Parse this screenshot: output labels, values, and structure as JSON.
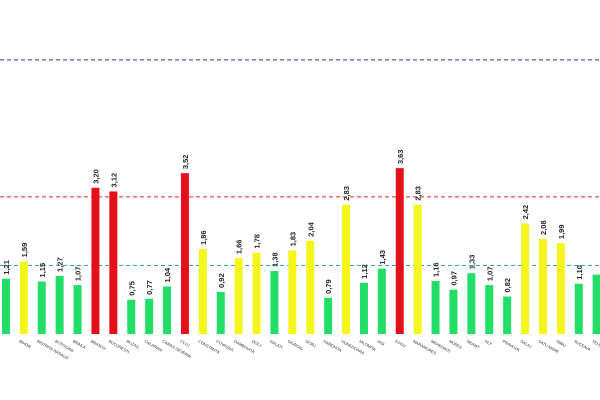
{
  "chart_data": {
    "type": "bar",
    "title": "",
    "xlabel": "",
    "ylabel": "",
    "ylim": [
      0,
      6.5
    ],
    "grid": false,
    "legend": "none",
    "categories": [
      "",
      "BIHOR",
      "BISTRITA-NASAUD",
      "BOTOSANI",
      "BRAILA",
      "BRASOV",
      "BUCURESTI",
      "BUZAU",
      "CALARASI",
      "CARAS-SEVERIN",
      "CLUJ",
      "CONSTANTA",
      "COVASNA",
      "DAMBOVITA",
      "DOLJ",
      "GALATI",
      "GIURGIU",
      "GORJ",
      "HARGHITA",
      "HUNEDOARA",
      "IALOMITA",
      "IASI",
      "ILFOV",
      "MARAMURES",
      "MEHEDINTI",
      "MURES",
      "NEAMT",
      "OLT",
      "PRAHOVA",
      "SALAJ",
      "SATU MARE",
      "SIBIU",
      "SUCEAVA",
      "TELEORMAN"
    ],
    "values": [
      1.21,
      1.59,
      1.15,
      1.27,
      1.07,
      3.2,
      3.12,
      0.75,
      0.77,
      1.04,
      3.52,
      1.86,
      0.92,
      1.66,
      1.78,
      1.38,
      1.83,
      2.04,
      0.79,
      2.83,
      1.12,
      1.43,
      3.63,
      2.83,
      1.16,
      0.97,
      1.33,
      1.07,
      0.82,
      2.42,
      2.08,
      1.99,
      1.1,
      1.3
    ],
    "value_labels": [
      "1,21",
      "1,59",
      "1,15",
      "1,27",
      "1,07",
      "3,20",
      "3,12",
      "0,75",
      "0,77",
      "1,04",
      "3,52",
      "1,86",
      "0,92",
      "1,66",
      "1,78",
      "1,38",
      "1,83",
      "2,04",
      "0,79",
      "2,83",
      "1,12",
      "1,43",
      "3,63",
      "2,83",
      "1,16",
      "0,97",
      "1,33",
      "1,07",
      "0,82",
      "2,42",
      "2,08",
      "1,99",
      "1,10",
      ""
    ],
    "thresholds": [
      {
        "value": 1.5,
        "color": "#29a3c9",
        "style": "dashed"
      },
      {
        "value": 3.0,
        "color": "#e02020",
        "style": "dashed"
      },
      {
        "value": 6.0,
        "color": "#3a2fa0",
        "style": "dashed"
      }
    ],
    "colors": {
      "green": "#22dd66",
      "yellow": "#f5f51e",
      "red": "#e3101b"
    }
  }
}
